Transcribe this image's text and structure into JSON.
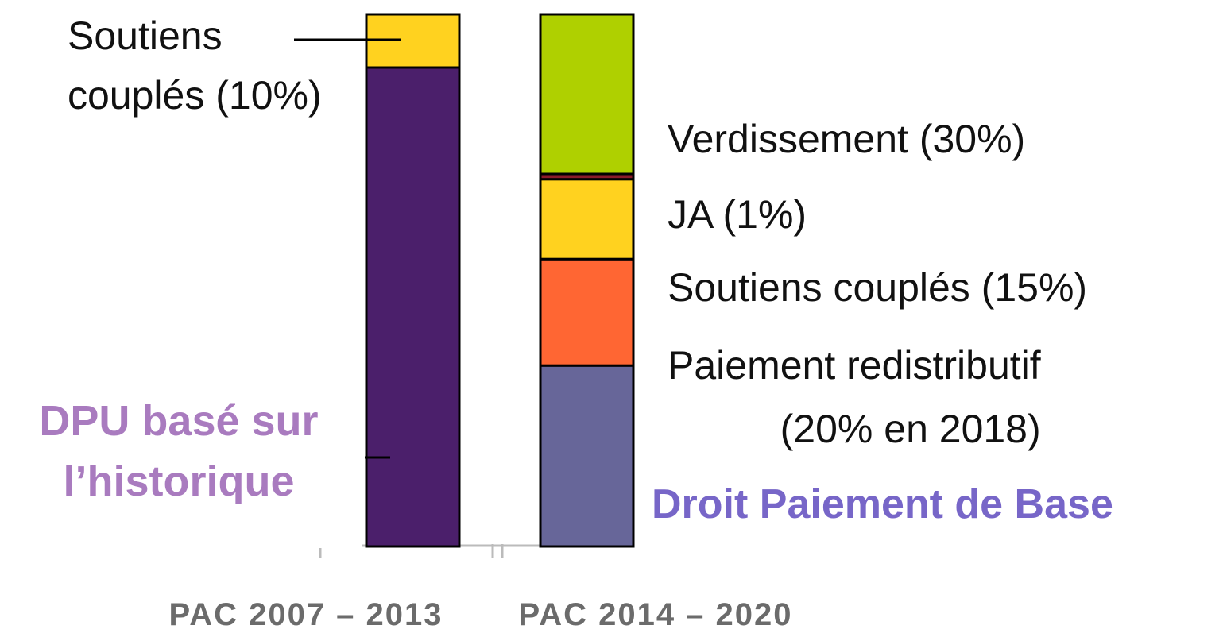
{
  "chart_data": {
    "type": "stacked_bar",
    "categories": [
      "PAC 2007 – 2013",
      "PAC 2014 – 2020"
    ],
    "ylim": [
      0,
      100
    ],
    "series": [
      {
        "name": "DPU basé sur\nl’historique",
        "color": "#4b1f6b",
        "label_color": "#a97bbf",
        "values": [
          90,
          null
        ]
      },
      {
        "name": "Soutiens\ncouplés (10%)",
        "color": "#ffd21f",
        "label_color": "#111111",
        "values": [
          10,
          null
        ]
      },
      {
        "name": "Droit Paiement de Base",
        "color": "#676699",
        "label_color": "#7766c8",
        "values": [
          null,
          34
        ]
      },
      {
        "name": "Paiement redistributif\n(20% en 2018)",
        "color": "#ff6633",
        "label_color": "#111111",
        "values": [
          null,
          20
        ]
      },
      {
        "name": "Soutiens couplés (15%)",
        "color": "#ffd21f",
        "label_color": "#111111",
        "values": [
          null,
          15
        ]
      },
      {
        "name": "JA (1%)",
        "color": "#8b1a2a",
        "label_color": "#111111",
        "values": [
          null,
          1
        ]
      },
      {
        "name": "Verdissement (30%)",
        "color": "#afd000",
        "label_color": "#111111",
        "values": [
          null,
          30
        ]
      }
    ]
  }
}
